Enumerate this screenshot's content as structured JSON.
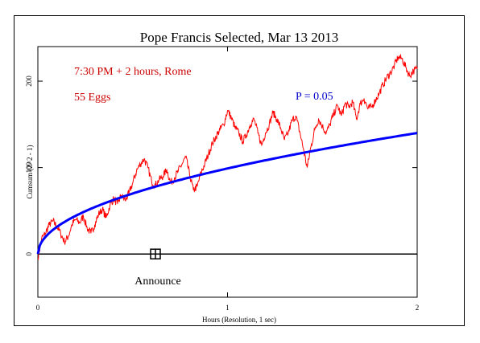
{
  "chart_data": {
    "type": "line",
    "title": "Pope Francis Selected, Mar 13 2013",
    "xlabel": "Hours (Resolution, 1 sec)",
    "ylabel": "Cumsum (Z^2 - 1)",
    "xlim": [
      0,
      2
    ],
    "ylim": [
      -50,
      240
    ],
    "x_ticks": [
      0,
      1,
      2
    ],
    "x_tick_labels": [
      "0",
      "1",
      "2"
    ],
    "y_ticks": [
      0,
      100,
      200
    ],
    "y_tick_labels": [
      "0",
      "100",
      "200"
    ],
    "grid": false,
    "annotations": {
      "time_window": "7:30 PM + 2 hours, Rome",
      "eggs": "55 Eggs",
      "probability_label": "P = 0.05",
      "event_label": "Announce",
      "event_x": 0.62
    },
    "series": [
      {
        "name": "P = 0.05",
        "color": "#0000ff",
        "formula": "1.645*sqrt(2*t)",
        "x": [
          0,
          0.02,
          0.05,
          0.1,
          0.2,
          0.3,
          0.4,
          0.5,
          0.6,
          0.7,
          0.8,
          0.9,
          1.0,
          1.1,
          1.2,
          1.3,
          1.4,
          1.5,
          1.6,
          1.7,
          1.8,
          1.9,
          2.0
        ],
        "y": [
          0,
          14,
          22,
          31,
          44,
          54,
          62,
          70,
          76,
          82,
          88,
          93,
          99,
          103,
          108,
          112,
          117,
          121,
          125,
          128,
          132,
          136,
          140
        ]
      },
      {
        "name": "",
        "color": "#ff0000",
        "x": [
          0,
          0.02,
          0.04,
          0.06,
          0.08,
          0.1,
          0.12,
          0.14,
          0.16,
          0.18,
          0.2,
          0.22,
          0.24,
          0.26,
          0.28,
          0.3,
          0.32,
          0.34,
          0.36,
          0.38,
          0.4,
          0.42,
          0.44,
          0.46,
          0.48,
          0.5,
          0.52,
          0.54,
          0.56,
          0.58,
          0.6,
          0.62,
          0.64,
          0.66,
          0.68,
          0.7,
          0.72,
          0.74,
          0.76,
          0.78,
          0.8,
          0.82,
          0.84,
          0.86,
          0.88,
          0.9,
          0.92,
          0.94,
          0.96,
          0.98,
          1.0,
          1.02,
          1.04,
          1.06,
          1.08,
          1.1,
          1.12,
          1.14,
          1.16,
          1.18,
          1.2,
          1.22,
          1.24,
          1.26,
          1.28,
          1.3,
          1.32,
          1.34,
          1.36,
          1.38,
          1.4,
          1.42,
          1.44,
          1.46,
          1.48,
          1.5,
          1.52,
          1.54,
          1.56,
          1.58,
          1.6,
          1.62,
          1.64,
          1.66,
          1.68,
          1.7,
          1.72,
          1.74,
          1.76,
          1.78,
          1.8,
          1.82,
          1.84,
          1.86,
          1.88,
          1.9,
          1.92,
          1.94,
          1.96,
          1.98,
          2.0
        ],
        "y": [
          -5,
          18,
          24,
          34,
          38,
          32,
          24,
          14,
          20,
          34,
          40,
          36,
          44,
          30,
          24,
          34,
          46,
          52,
          42,
          56,
          64,
          58,
          68,
          62,
          70,
          82,
          96,
          104,
          110,
          100,
          84,
          80,
          86,
          90,
          98,
          82,
          88,
          96,
          104,
          112,
          92,
          74,
          78,
          94,
          104,
          116,
          128,
          136,
          144,
          150,
          166,
          158,
          146,
          140,
          130,
          138,
          150,
          156,
          140,
          126,
          140,
          150,
          164,
          156,
          146,
          132,
          140,
          154,
          160,
          142,
          122,
          100,
          124,
          144,
          156,
          148,
          140,
          150,
          162,
          172,
          160,
          174,
          170,
          176,
          156,
          174,
          180,
          168,
          170,
          178,
          186,
          196,
          204,
          210,
          218,
          228,
          226,
          216,
          206,
          212,
          214
        ]
      }
    ]
  }
}
